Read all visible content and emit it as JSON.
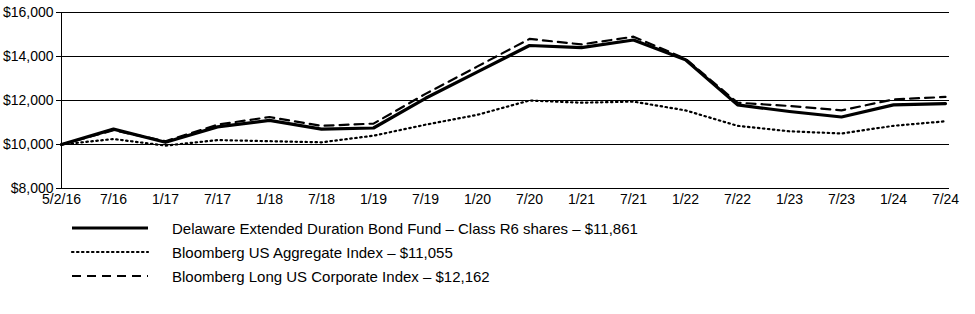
{
  "chart_data": {
    "type": "line",
    "categories": [
      "5/2/16",
      "7/16",
      "1/17",
      "7/17",
      "1/18",
      "7/18",
      "1/19",
      "7/19",
      "1/20",
      "7/20",
      "1/21",
      "7/21",
      "1/22",
      "7/22",
      "1/23",
      "7/23",
      "1/24",
      "7/24"
    ],
    "series": [
      {
        "name": "Delaware Extended Duration Bond Fund – Class R6 shares – $11,861",
        "color": "#000000",
        "line_style": "solid",
        "values": [
          10000,
          10700,
          10100,
          10800,
          11100,
          10700,
          10750,
          12100,
          13300,
          14500,
          14400,
          14750,
          13850,
          11800,
          11500,
          11250,
          11800,
          11861
        ]
      },
      {
        "name": "Bloomberg US Aggregate Index – $11,055",
        "color": "#000000",
        "line_style": "dotted",
        "values": [
          10000,
          10250,
          9950,
          10200,
          10150,
          10100,
          10400,
          10900,
          11350,
          12000,
          11900,
          11950,
          11550,
          10850,
          10600,
          10500,
          10850,
          11055
        ]
      },
      {
        "name": "Bloomberg Long US Corporate Index – $12,162",
        "color": "#000000",
        "line_style": "dashed",
        "values": [
          10000,
          10650,
          10150,
          10900,
          11250,
          10850,
          10950,
          12300,
          13550,
          14800,
          14550,
          14900,
          13900,
          11900,
          11750,
          11550,
          12050,
          12162
        ]
      }
    ],
    "ylim": [
      8000,
      16000
    ],
    "yticks": [
      {
        "value": 8000,
        "label": "$8,000"
      },
      {
        "value": 10000,
        "label": "$10,000"
      },
      {
        "value": 12000,
        "label": "$12,000"
      },
      {
        "value": 14000,
        "label": "$14,000"
      },
      {
        "value": 16000,
        "label": "$16,000"
      }
    ],
    "grid": true
  }
}
